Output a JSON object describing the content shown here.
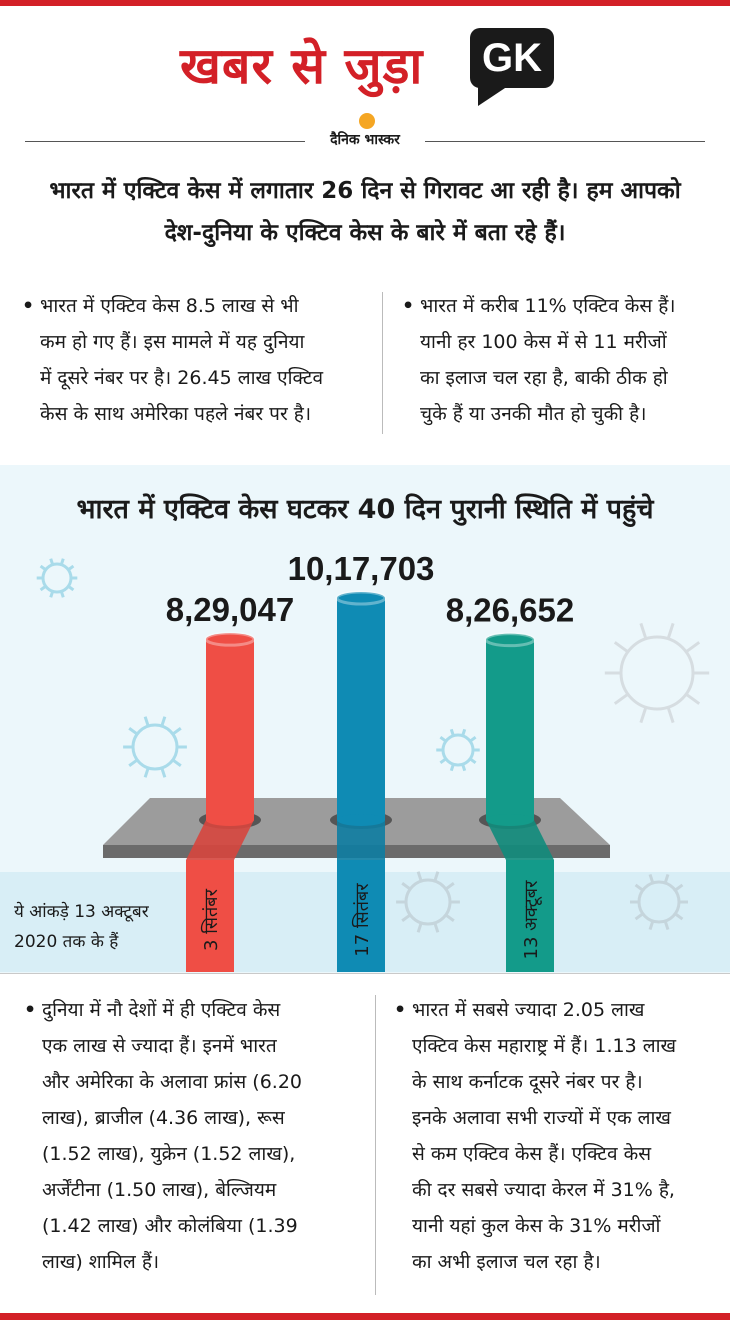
{
  "header": {
    "title": "खबर से जुड़ा",
    "badge": "GK",
    "brand": "दैनिक भास्कर"
  },
  "intro": {
    "line1": "भारत में एक्टिव केस में लगातार 26 दिन से गिरावट आ रही है। हम आपको",
    "line2": "देश-दुनिया के एक्टिव केस के बारे में बता रहे हैं।"
  },
  "top_points": [
    {
      "lines": [
        "भारत में एक्टिव केस 8.5 लाख से भी",
        "कम हो गए हैं। इस मामले में यह दुनिया",
        "में दूसरे नंबर पर है। 26.45 लाख एक्टिव",
        "केस के साथ अमेरिका पहले नंबर पर है।"
      ]
    },
    {
      "lines": [
        "भारत में करीब 11% एक्टिव केस हैं।",
        "यानी हर 100 केस में से 11 मरीजों",
        "का इलाज चल रहा है, बाकी ठीक हो",
        "चुके हैं या उनकी मौत हो चुकी है।"
      ]
    }
  ],
  "chart_data": {
    "type": "bar",
    "title": "भारत में एक्टिव केस घटकर 40 दिन पुरानी स्थिति में पहुंचे",
    "categories": [
      "3 सितंबर",
      "17 सितंबर",
      "13 अक्टूबर"
    ],
    "values": [
      829047,
      1017703,
      826652
    ],
    "value_labels": [
      "8,29,047",
      "10,17,703",
      "8,26,652"
    ],
    "colors": [
      "#ef4e45",
      "#0f8bb4",
      "#139b8a"
    ],
    "note_lines": [
      "ये आंकड़े 13 अक्टूबर",
      "2020 तक के हैं"
    ]
  },
  "bottom_points": [
    {
      "lines": [
        "दुनिया में नौ देशों में ही एक्टिव केस",
        "एक लाख से ज्यादा हैं। इनमें भारत",
        "और अमेरिका के अलावा फ्रांस (6.20",
        "लाख), ब्राजील (4.36 लाख), रूस",
        "(1.52 लाख), युक्रेन (1.52 लाख),",
        "अर्जेंटीना (1.50 लाख), बेल्जियम",
        "(1.42 लाख) और कोलंबिया (1.39",
        "लाख) शामिल हैं।"
      ]
    },
    {
      "lines": [
        "भारत में सबसे ज्यादा 2.05 लाख",
        "एक्टिव केस महाराष्ट्र में हैं। 1.13 लाख",
        "के साथ कर्नाटक दूसरे नंबर पर है।",
        "इनके अलावा सभी राज्यों में एक लाख",
        "से कम एक्टिव केस हैं। एक्टिव केस",
        "की दर सबसे ज्यादा केरल में 31% है,",
        "यानी यहां कुल केस के 31% मरीजों",
        "का अभी इलाज चल रहा है।"
      ]
    }
  ]
}
